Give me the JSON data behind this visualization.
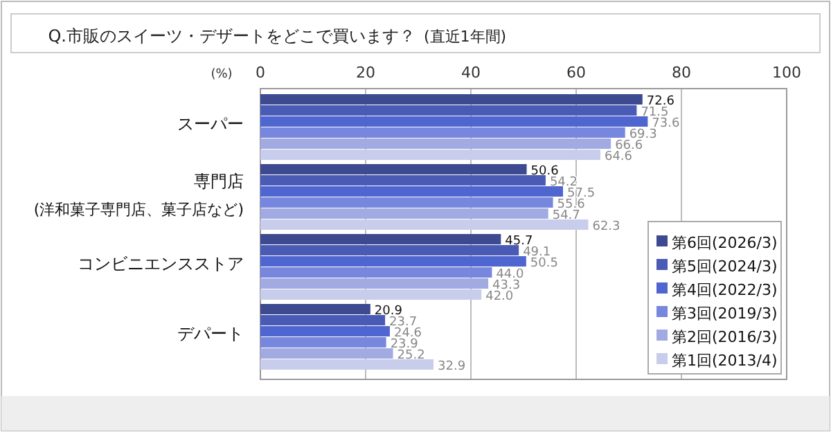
{
  "chart_data": {
    "type": "bar",
    "orientation": "horizontal",
    "title": "Q.市販のスイーツ・デザートをどこで買います？",
    "subtitle": "(直近1年間)",
    "xlabel": "(%)",
    "categories": [
      "スーパー",
      "専門店\n(洋和菓子専門店、菓子店など)",
      "コンビニエンスストア",
      "デパート"
    ],
    "series": [
      {
        "name": "第6回(2026/3)",
        "color": "#3d4a90",
        "values": [
          72.6,
          50.6,
          45.7,
          20.9
        ]
      },
      {
        "name": "第5回(2024/3)",
        "color": "#4a5bb5",
        "values": [
          71.5,
          54.2,
          49.1,
          23.7
        ]
      },
      {
        "name": "第4回(2022/3)",
        "color": "#4f66d0",
        "values": [
          73.6,
          57.5,
          50.5,
          24.6
        ]
      },
      {
        "name": "第3回(2019/3)",
        "color": "#7887de",
        "values": [
          69.3,
          55.6,
          44.0,
          23.9
        ]
      },
      {
        "name": "第2回(2016/3)",
        "color": "#a2aae2",
        "values": [
          66.6,
          54.7,
          43.3,
          25.2
        ]
      },
      {
        "name": "第1回(2013/4)",
        "color": "#c9cdec",
        "values": [
          64.6,
          62.3,
          42.0,
          32.9
        ]
      }
    ],
    "value_labels": [
      [
        "72.6",
        "50.6",
        "45.7",
        "20.9"
      ],
      [
        "71.5",
        "54.2",
        "49.1",
        "23.7"
      ],
      [
        "73.6",
        "57.5",
        "50.5",
        "24.6"
      ],
      [
        "69.3",
        "55.6",
        "44.0",
        "23.9"
      ],
      [
        "66.6",
        "54.7",
        "43.3",
        "25.2"
      ],
      [
        "64.6",
        "62.3",
        "42.0",
        "32.9"
      ]
    ],
    "xlim": [
      0,
      100
    ],
    "xticks": [
      0,
      20,
      40,
      60,
      80,
      100
    ],
    "grid": "x",
    "legend": "bottom right"
  }
}
